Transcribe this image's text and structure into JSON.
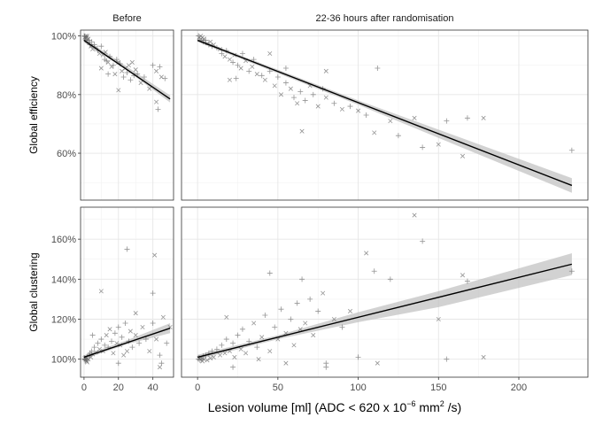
{
  "chart_data": {
    "type": "scatter",
    "facets": {
      "columns": [
        "Before",
        "22-36 hours after randomisation"
      ],
      "rows": [
        "Global efficiency",
        "Global clustering"
      ]
    },
    "xlabel": {
      "main": "Lesion volume [ml] (ADC < 620 x 10",
      "exp": "−6",
      "unit": " mm",
      "unit_exp": "2",
      "tail": " /s)"
    },
    "x_ticks": {
      "Before": [
        "0",
        "20",
        "40"
      ],
      "22-36 hours after randomisation": [
        "0",
        "50",
        "100",
        "150",
        "200"
      ]
    },
    "y_ticks": {
      "Global efficiency": [
        "60%",
        "80%",
        "100%"
      ],
      "Global clustering": [
        "100%",
        "120%",
        "140%",
        "160%"
      ]
    },
    "x_ranges": {
      "Before": [
        -2,
        52
      ],
      "22-36 hours after randomisation": [
        -10,
        243
      ]
    },
    "y_ranges": {
      "Global efficiency": [
        44,
        102
      ],
      "Global clustering": [
        91,
        176
      ]
    },
    "markers": [
      "plus",
      "cross"
    ],
    "colors": {
      "points": "#666666",
      "line": "#000000",
      "ribbon": "#bfbfbf",
      "border": "#333333",
      "grid": "#e6e6e6"
    },
    "grid": true,
    "fits": [
      {
        "row": "Global efficiency",
        "col": "Before",
        "x": [
          0,
          50
        ],
        "y": [
          98.5,
          78.5
        ],
        "ci_x": [
          0,
          25,
          50
        ],
        "ci_lo": [
          97.8,
          88.2,
          77.3
        ],
        "ci_hi": [
          99.2,
          89.5,
          79.7
        ]
      },
      {
        "row": "Global efficiency",
        "col": "22-36 hours after randomisation",
        "x": [
          0,
          233
        ],
        "y": [
          98.5,
          49
        ],
        "ci_x": [
          0,
          100,
          233
        ],
        "ci_lo": [
          98,
          76.5,
          46.5
        ],
        "ci_hi": [
          99,
          78,
          51.5
        ]
      },
      {
        "row": "Global clustering",
        "col": "Before",
        "x": [
          0,
          50
        ],
        "y": [
          101,
          115.5
        ],
        "ci_x": [
          0,
          25,
          50
        ],
        "ci_lo": [
          100,
          107.5,
          113
        ],
        "ci_hi": [
          102,
          109.5,
          118
        ]
      },
      {
        "row": "Global clustering",
        "col": "22-36 hours after randomisation",
        "x": [
          0,
          233
        ],
        "y": [
          101,
          147.5
        ],
        "ci_x": [
          0,
          50,
          100,
          150,
          233
        ],
        "ci_lo": [
          99.8,
          110,
          118.5,
          126,
          142
        ],
        "ci_hi": [
          102.2,
          112,
          123.5,
          134,
          153
        ]
      }
    ],
    "points": [
      {
        "row": "Global efficiency",
        "col": "Before",
        "points": [
          [
            0.2,
            100
          ],
          [
            0.5,
            99.5
          ],
          [
            0.8,
            99
          ],
          [
            1,
            100
          ],
          [
            1.2,
            98.5
          ],
          [
            1.5,
            99.5
          ],
          [
            2,
            98
          ],
          [
            2.5,
            99
          ],
          [
            3,
            98.5
          ],
          [
            1.8,
            100
          ],
          [
            0.4,
            99.8
          ],
          [
            1.1,
            99.2
          ],
          [
            3.5,
            97
          ],
          [
            4,
            96.5
          ],
          [
            4.5,
            98
          ],
          [
            5,
            95.5
          ],
          [
            6,
            97
          ],
          [
            7,
            96
          ],
          [
            8,
            95
          ],
          [
            9,
            94
          ],
          [
            10,
            96.5
          ],
          [
            11,
            93.5
          ],
          [
            12,
            92
          ],
          [
            12.5,
            94.5
          ],
          [
            13,
            91.5
          ],
          [
            14,
            91
          ],
          [
            15,
            93
          ],
          [
            16,
            89.5
          ],
          [
            17,
            90
          ],
          [
            18,
            87
          ],
          [
            19,
            92
          ],
          [
            20,
            91
          ],
          [
            21,
            90.5
          ],
          [
            22,
            88
          ],
          [
            23,
            86
          ],
          [
            24,
            89
          ],
          [
            25,
            87.5
          ],
          [
            26,
            90
          ],
          [
            27,
            85
          ],
          [
            28,
            91
          ],
          [
            29,
            86.5
          ],
          [
            30,
            88.5
          ],
          [
            31,
            87
          ],
          [
            33,
            84
          ],
          [
            35,
            86
          ],
          [
            38,
            82
          ],
          [
            40,
            90
          ],
          [
            42,
            88
          ],
          [
            44,
            89.5
          ],
          [
            45,
            86
          ],
          [
            47,
            85.5
          ],
          [
            42,
            77.5
          ],
          [
            43,
            75
          ],
          [
            20,
            81.5
          ],
          [
            14,
            87
          ],
          [
            10,
            89
          ]
        ]
      },
      {
        "row": "Global efficiency",
        "col": "22-36 hours after randomisation",
        "points": [
          [
            0.5,
            100
          ],
          [
            1,
            99.5
          ],
          [
            1.5,
            99
          ],
          [
            2,
            100
          ],
          [
            2.5,
            98.5
          ],
          [
            3,
            99.5
          ],
          [
            3.5,
            98
          ],
          [
            4,
            99
          ],
          [
            5,
            98.5
          ],
          [
            6,
            97.5
          ],
          [
            7,
            97
          ],
          [
            8,
            98
          ],
          [
            9,
            96.5
          ],
          [
            10,
            97
          ],
          [
            12,
            96
          ],
          [
            14,
            95.5
          ],
          [
            15,
            94
          ],
          [
            17,
            93
          ],
          [
            18,
            95
          ],
          [
            20,
            92
          ],
          [
            22,
            91
          ],
          [
            23,
            93.5
          ],
          [
            25,
            90
          ],
          [
            27,
            89
          ],
          [
            28,
            94
          ],
          [
            30,
            91.5
          ],
          [
            32,
            88
          ],
          [
            34,
            89.5
          ],
          [
            35,
            92
          ],
          [
            37,
            87
          ],
          [
            40,
            86.5
          ],
          [
            42,
            85
          ],
          [
            45,
            88
          ],
          [
            48,
            83
          ],
          [
            50,
            86
          ],
          [
            52,
            80
          ],
          [
            55,
            84
          ],
          [
            58,
            82
          ],
          [
            60,
            79
          ],
          [
            62,
            77
          ],
          [
            64,
            81
          ],
          [
            65,
            67.5
          ],
          [
            67,
            78
          ],
          [
            70,
            83
          ],
          [
            72,
            80
          ],
          [
            75,
            76
          ],
          [
            78,
            82
          ],
          [
            80,
            79
          ],
          [
            85,
            77
          ],
          [
            90,
            75
          ],
          [
            95,
            76
          ],
          [
            100,
            74.5
          ],
          [
            105,
            73
          ],
          [
            110,
            67
          ],
          [
            112,
            89
          ],
          [
            120,
            71
          ],
          [
            125,
            66
          ],
          [
            135,
            72
          ],
          [
            140,
            62
          ],
          [
            150,
            63
          ],
          [
            155,
            71
          ],
          [
            165,
            59
          ],
          [
            168,
            72
          ],
          [
            178,
            72
          ],
          [
            233,
            61
          ],
          [
            20,
            85
          ],
          [
            24,
            85.5
          ],
          [
            45,
            94
          ],
          [
            55,
            89
          ],
          [
            80,
            88
          ]
        ]
      },
      {
        "row": "Global clustering",
        "col": "Before",
        "points": [
          [
            0.2,
            100
          ],
          [
            0.5,
            100.5
          ],
          [
            0.8,
            99.5
          ],
          [
            1,
            101
          ],
          [
            1.2,
            100
          ],
          [
            1.5,
            99
          ],
          [
            2,
            101.5
          ],
          [
            2.5,
            100
          ],
          [
            3,
            102
          ],
          [
            1.8,
            98.5
          ],
          [
            0.4,
            100.2
          ],
          [
            1.1,
            99.8
          ],
          [
            3.5,
            103
          ],
          [
            4,
            101
          ],
          [
            4.5,
            104
          ],
          [
            5,
            102.5
          ],
          [
            6,
            106
          ],
          [
            7,
            103.5
          ],
          [
            8,
            108
          ],
          [
            9,
            105
          ],
          [
            10,
            110
          ],
          [
            11,
            104
          ],
          [
            12,
            107
          ],
          [
            13,
            112
          ],
          [
            14,
            106
          ],
          [
            15,
            115
          ],
          [
            16,
            109
          ],
          [
            17,
            103
          ],
          [
            18,
            113
          ],
          [
            19,
            108
          ],
          [
            20,
            116
          ],
          [
            21,
            107
          ],
          [
            22,
            111
          ],
          [
            23,
            102
          ],
          [
            24,
            118
          ],
          [
            25,
            104
          ],
          [
            26,
            109
          ],
          [
            27,
            114
          ],
          [
            28,
            106
          ],
          [
            30,
            112
          ],
          [
            32,
            108
          ],
          [
            34,
            116
          ],
          [
            36,
            110
          ],
          [
            38,
            104
          ],
          [
            40,
            118
          ],
          [
            42,
            110
          ],
          [
            44,
            102
          ],
          [
            46,
            121
          ],
          [
            48,
            108
          ],
          [
            50,
            116
          ],
          [
            5,
            112
          ],
          [
            10,
            134
          ],
          [
            25,
            155
          ],
          [
            41,
            152
          ],
          [
            40,
            133
          ],
          [
            30,
            123
          ],
          [
            45,
            98
          ],
          [
            44,
            96
          ],
          [
            20,
            98
          ]
        ]
      },
      {
        "row": "Global clustering",
        "col": "22-36 hours after randomisation",
        "points": [
          [
            0.5,
            100
          ],
          [
            1,
            100.5
          ],
          [
            1.5,
            99.5
          ],
          [
            2,
            101
          ],
          [
            2.5,
            100
          ],
          [
            3,
            99
          ],
          [
            3.5,
            101.5
          ],
          [
            4,
            100
          ],
          [
            5,
            102
          ],
          [
            6,
            99.5
          ],
          [
            7,
            103
          ],
          [
            8,
            100.5
          ],
          [
            9,
            104
          ],
          [
            10,
            101
          ],
          [
            12,
            105
          ],
          [
            14,
            102
          ],
          [
            15,
            107
          ],
          [
            17,
            103
          ],
          [
            18,
            110
          ],
          [
            20,
            104
          ],
          [
            22,
            108
          ],
          [
            23,
            101
          ],
          [
            25,
            112
          ],
          [
            27,
            105
          ],
          [
            28,
            115
          ],
          [
            30,
            103
          ],
          [
            32,
            109
          ],
          [
            35,
            118
          ],
          [
            37,
            106
          ],
          [
            40,
            111
          ],
          [
            42,
            122
          ],
          [
            45,
            104
          ],
          [
            48,
            116
          ],
          [
            50,
            110
          ],
          [
            52,
            125
          ],
          [
            55,
            113
          ],
          [
            58,
            120
          ],
          [
            60,
            107
          ],
          [
            62,
            128
          ],
          [
            64,
            115
          ],
          [
            65,
            140
          ],
          [
            67,
            118
          ],
          [
            70,
            130
          ],
          [
            72,
            112
          ],
          [
            75,
            124
          ],
          [
            78,
            133
          ],
          [
            80,
            98
          ],
          [
            85,
            120
          ],
          [
            90,
            116
          ],
          [
            95,
            124
          ],
          [
            100,
            101
          ],
          [
            105,
            153
          ],
          [
            110,
            144
          ],
          [
            112,
            98
          ],
          [
            120,
            140
          ],
          [
            135,
            172
          ],
          [
            140,
            159
          ],
          [
            150,
            120
          ],
          [
            155,
            100
          ],
          [
            165,
            142
          ],
          [
            168,
            139
          ],
          [
            178,
            101
          ],
          [
            233,
            144
          ],
          [
            18,
            121
          ],
          [
            22,
            96
          ],
          [
            38,
            100
          ],
          [
            45,
            143
          ],
          [
            55,
            98
          ],
          [
            80,
            96
          ]
        ]
      }
    ]
  }
}
